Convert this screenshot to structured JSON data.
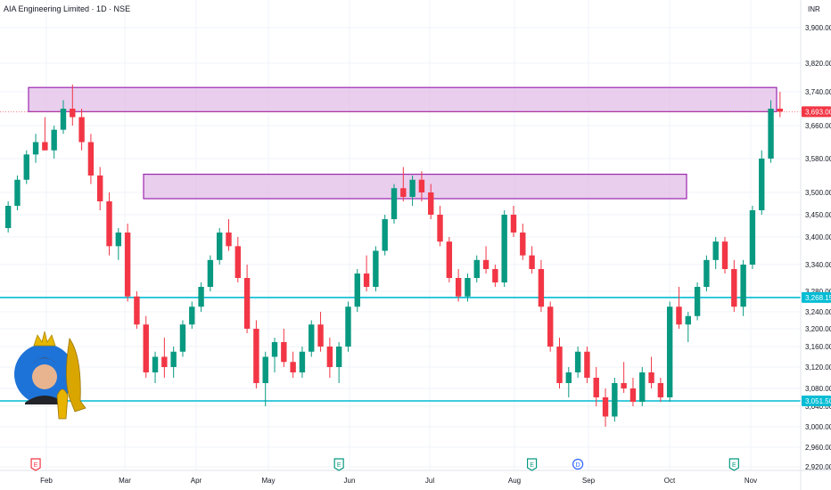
{
  "chart_data": {
    "type": "candlestick",
    "title": "AIA Engineering Limited · 1D · NSE",
    "currency": "INR",
    "y_ticks": [
      "3,900.00",
      "3,820.00",
      "3,740.00",
      "3,660.00",
      "3,580.00",
      "3,500.00",
      "3,450.00",
      "3,400.00",
      "3,340.00",
      "3,280.00",
      "3,240.00",
      "3,200.00",
      "3,160.00",
      "3,120.00",
      "3,080.00",
      "3,040.00",
      "3,000.00",
      "2,960.00",
      "2,920.00"
    ],
    "x_ticks": [
      "Feb",
      "Mar",
      "Apr",
      "May",
      "Jun",
      "Jul",
      "Aug",
      "Sep",
      "Oct",
      "Nov"
    ],
    "current_price_label": "3,693.00",
    "level_labels": [
      "3,268.15",
      "3,051.50"
    ],
    "zones": [
      {
        "from": 3693,
        "to": 3752
      },
      {
        "from": 3486,
        "to": 3543
      }
    ],
    "levels": [
      3268,
      3052
    ],
    "current_price": 3693,
    "event_markers": [
      {
        "letter": "E",
        "date_index": 3,
        "color": "#f23645"
      },
      {
        "letter": "E",
        "date_index": 36,
        "color": "#089981"
      },
      {
        "letter": "E",
        "date_index": 57,
        "color": "#089981"
      },
      {
        "letter": "D",
        "date_index": 62,
        "color": "#2962ff"
      },
      {
        "letter": "E",
        "date_index": 79,
        "color": "#089981"
      }
    ],
    "colors": {
      "up": "#089981",
      "down": "#f23645",
      "zone_fill": "#e1bee7",
      "zone_stroke": "#9c27b0",
      "level": "#00bcd4",
      "price": "#f23645"
    },
    "candles_note": "OHLC by trading day",
    "candles": [
      [
        3420,
        3480,
        3410,
        3470
      ],
      [
        3470,
        3540,
        3460,
        3530
      ],
      [
        3530,
        3600,
        3520,
        3590
      ],
      [
        3590,
        3640,
        3570,
        3620
      ],
      [
        3620,
        3680,
        3600,
        3600
      ],
      [
        3600,
        3660,
        3580,
        3650
      ],
      [
        3650,
        3720,
        3640,
        3700
      ],
      [
        3700,
        3760,
        3660,
        3680
      ],
      [
        3680,
        3700,
        3600,
        3620
      ],
      [
        3620,
        3640,
        3520,
        3540
      ],
      [
        3540,
        3560,
        3460,
        3480
      ],
      [
        3480,
        3500,
        3360,
        3380
      ],
      [
        3380,
        3420,
        3350,
        3410
      ],
      [
        3410,
        3430,
        3260,
        3270
      ],
      [
        3270,
        3280,
        3200,
        3210
      ],
      [
        3210,
        3230,
        3100,
        3110
      ],
      [
        3110,
        3150,
        3090,
        3140
      ],
      [
        3140,
        3180,
        3100,
        3120
      ],
      [
        3120,
        3160,
        3100,
        3150
      ],
      [
        3150,
        3220,
        3140,
        3210
      ],
      [
        3210,
        3260,
        3200,
        3250
      ],
      [
        3250,
        3300,
        3240,
        3290
      ],
      [
        3290,
        3360,
        3280,
        3350
      ],
      [
        3350,
        3420,
        3340,
        3410
      ],
      [
        3410,
        3440,
        3370,
        3380
      ],
      [
        3380,
        3400,
        3300,
        3310
      ],
      [
        3310,
        3340,
        3190,
        3200
      ],
      [
        3200,
        3220,
        3080,
        3090
      ],
      [
        3090,
        3150,
        3040,
        3140
      ],
      [
        3140,
        3180,
        3110,
        3170
      ],
      [
        3170,
        3200,
        3120,
        3130
      ],
      [
        3130,
        3150,
        3100,
        3110
      ],
      [
        3110,
        3160,
        3100,
        3150
      ],
      [
        3150,
        3220,
        3140,
        3210
      ],
      [
        3210,
        3240,
        3150,
        3160
      ],
      [
        3160,
        3180,
        3100,
        3120
      ],
      [
        3120,
        3170,
        3090,
        3160
      ],
      [
        3160,
        3260,
        3150,
        3250
      ],
      [
        3250,
        3330,
        3240,
        3320
      ],
      [
        3320,
        3360,
        3280,
        3290
      ],
      [
        3290,
        3380,
        3280,
        3370
      ],
      [
        3370,
        3450,
        3360,
        3440
      ],
      [
        3440,
        3520,
        3430,
        3510
      ],
      [
        3510,
        3560,
        3480,
        3490
      ],
      [
        3490,
        3540,
        3470,
        3530
      ],
      [
        3530,
        3550,
        3480,
        3500
      ],
      [
        3500,
        3520,
        3440,
        3450
      ],
      [
        3450,
        3470,
        3380,
        3390
      ],
      [
        3390,
        3400,
        3300,
        3310
      ],
      [
        3310,
        3330,
        3260,
        3270
      ],
      [
        3270,
        3320,
        3260,
        3310
      ],
      [
        3310,
        3360,
        3300,
        3350
      ],
      [
        3350,
        3380,
        3320,
        3330
      ],
      [
        3330,
        3340,
        3290,
        3300
      ],
      [
        3300,
        3460,
        3290,
        3450
      ],
      [
        3450,
        3470,
        3400,
        3410
      ],
      [
        3410,
        3430,
        3350,
        3360
      ],
      [
        3360,
        3380,
        3320,
        3330
      ],
      [
        3330,
        3350,
        3240,
        3250
      ],
      [
        3250,
        3260,
        3150,
        3160
      ],
      [
        3160,
        3180,
        3080,
        3090
      ],
      [
        3090,
        3120,
        3060,
        3110
      ],
      [
        3110,
        3160,
        3100,
        3150
      ],
      [
        3150,
        3160,
        3090,
        3100
      ],
      [
        3100,
        3120,
        3040,
        3060
      ],
      [
        3060,
        3080,
        3000,
        3020
      ],
      [
        3020,
        3100,
        3010,
        3090
      ],
      [
        3090,
        3130,
        3070,
        3080
      ],
      [
        3080,
        3100,
        3040,
        3050
      ],
      [
        3050,
        3120,
        3040,
        3110
      ],
      [
        3110,
        3140,
        3080,
        3090
      ],
      [
        3090,
        3100,
        3050,
        3060
      ],
      [
        3060,
        3260,
        3050,
        3250
      ],
      [
        3250,
        3290,
        3200,
        3210
      ],
      [
        3210,
        3240,
        3170,
        3230
      ],
      [
        3230,
        3300,
        3220,
        3290
      ],
      [
        3290,
        3360,
        3280,
        3350
      ],
      [
        3350,
        3400,
        3330,
        3390
      ],
      [
        3390,
        3400,
        3320,
        3330
      ],
      [
        3330,
        3350,
        3240,
        3250
      ],
      [
        3250,
        3350,
        3230,
        3340
      ],
      [
        3340,
        3470,
        3330,
        3460
      ],
      [
        3460,
        3600,
        3450,
        3580
      ],
      [
        3580,
        3720,
        3570,
        3700
      ],
      [
        3700,
        3740,
        3680,
        3693
      ]
    ]
  }
}
